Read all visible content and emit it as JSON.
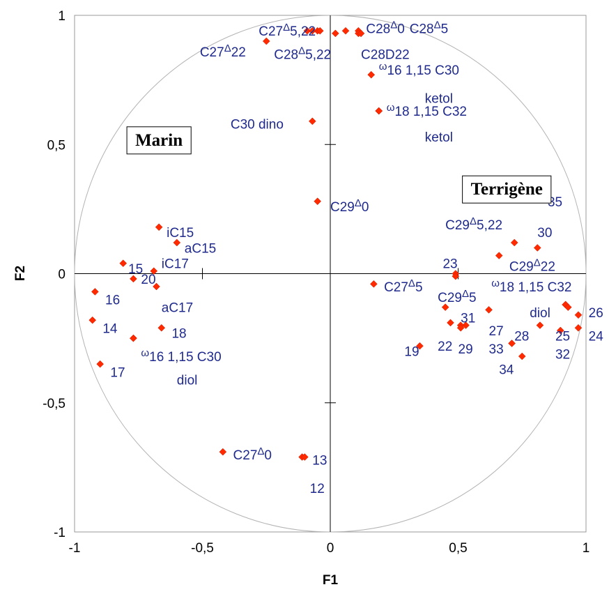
{
  "chart_data": {
    "type": "scatter",
    "title": "",
    "xlabel": "F1",
    "ylabel": "F2",
    "xlim": [
      -1,
      1
    ],
    "ylim": [
      -1,
      1
    ],
    "grid": false,
    "correlation_circle": true,
    "x_ticks": [
      {
        "v": -1,
        "label": "-1"
      },
      {
        "v": -0.5,
        "label": "-0,5"
      },
      {
        "v": 0,
        "label": "0"
      },
      {
        "v": 0.5,
        "label": "0,5"
      },
      {
        "v": 1,
        "label": "1"
      }
    ],
    "y_ticks": [
      {
        "v": 1,
        "label": "1"
      },
      {
        "v": 0.5,
        "label": "0,5"
      },
      {
        "v": 0,
        "label": "0"
      },
      {
        "v": -0.5,
        "label": "-0,5"
      },
      {
        "v": -1,
        "label": "-1"
      }
    ],
    "colors": {
      "marker": "#ff2a00",
      "label": "#1f2a8c",
      "circle": "#b3b3b3",
      "frame": "#999999"
    },
    "box_labels": [
      {
        "text": "Marin",
        "x": -0.67,
        "y": 0.52
      },
      {
        "text": "Terrigène",
        "x": 0.69,
        "y": 0.33
      }
    ],
    "points": [
      {
        "x": -0.05,
        "y": 0.94,
        "label": "C27Δ5,22",
        "lx": -0.28,
        "ly": 0.94,
        "t": [
          [
            "C27",
            ""
          ],
          [
            "Δ",
            "s"
          ],
          [
            "5,22",
            ""
          ]
        ]
      },
      {
        "x": -0.09,
        "y": 0.94,
        "label": "",
        "lx": 0,
        "ly": 0,
        "t": []
      },
      {
        "x": -0.07,
        "y": 0.94,
        "label": "",
        "lx": 0,
        "ly": 0,
        "t": []
      },
      {
        "x": 0.02,
        "y": 0.93,
        "label": "",
        "lx": 0,
        "ly": 0,
        "t": []
      },
      {
        "x": 0.06,
        "y": 0.94,
        "label": "",
        "lx": 0,
        "ly": 0,
        "t": []
      },
      {
        "x": 0.11,
        "y": 0.94,
        "label": "C28Δ0",
        "lx": 0.14,
        "ly": 0.95,
        "t": [
          [
            "C28",
            ""
          ],
          [
            "Δ",
            "s"
          ],
          [
            "0",
            ""
          ]
        ]
      },
      {
        "x": 0.11,
        "y": 0.93,
        "label": "C28Δ5",
        "lx": 0.31,
        "ly": 0.95,
        "t": [
          [
            "C28",
            ""
          ],
          [
            "Δ",
            "s"
          ],
          [
            "5",
            ""
          ]
        ]
      },
      {
        "x": -0.25,
        "y": 0.9,
        "label": "C27Δ22",
        "lx": -0.51,
        "ly": 0.86,
        "t": [
          [
            "C27",
            ""
          ],
          [
            "Δ",
            "s"
          ],
          [
            "22",
            ""
          ]
        ]
      },
      {
        "x": -0.04,
        "y": 0.94,
        "label": "C28Δ5,22",
        "lx": -0.22,
        "ly": 0.85,
        "t": [
          [
            "C28",
            ""
          ],
          [
            "Δ",
            "s"
          ],
          [
            "5,22",
            ""
          ]
        ]
      },
      {
        "x": 0.12,
        "y": 0.93,
        "label": "C28D22",
        "lx": 0.12,
        "ly": 0.85,
        "t": [
          [
            "C28D22",
            ""
          ]
        ]
      },
      {
        "x": 0.16,
        "y": 0.77,
        "label": "ω16 1,15 C30",
        "lx": 0.19,
        "ly": 0.79,
        "t": [
          [
            "ω",
            "s"
          ],
          [
            "16 1,15 C30",
            ""
          ]
        ]
      },
      {
        "x": 0.16,
        "y": 0.77,
        "label": "ketol",
        "lx": 0.37,
        "ly": 0.68,
        "t": [
          [
            "ketol",
            ""
          ]
        ]
      },
      {
        "x": 0.19,
        "y": 0.63,
        "label": "ω18 1,15 C32",
        "lx": 0.22,
        "ly": 0.63,
        "t": [
          [
            "ω",
            "s"
          ],
          [
            "18 1,15 C32",
            ""
          ]
        ]
      },
      {
        "x": 0.19,
        "y": 0.63,
        "label": "ketol",
        "lx": 0.37,
        "ly": 0.53,
        "t": [
          [
            "ketol",
            ""
          ]
        ]
      },
      {
        "x": -0.07,
        "y": 0.59,
        "label": "C30 dino",
        "lx": -0.39,
        "ly": 0.58,
        "t": [
          [
            "C30 dino",
            ""
          ]
        ]
      },
      {
        "x": -0.05,
        "y": 0.28,
        "label": "C29Δ0",
        "lx": 0.0,
        "ly": 0.26,
        "t": [
          [
            "C29",
            ""
          ],
          [
            "Δ",
            "s"
          ],
          [
            "0",
            ""
          ]
        ]
      },
      {
        "x": 0.81,
        "y": 0.3,
        "label": "35",
        "lx": 0.85,
        "ly": 0.28,
        "t": [
          [
            "35",
            ""
          ]
        ]
      },
      {
        "x": 0.72,
        "y": 0.12,
        "label": "C29Δ5,22",
        "lx": 0.45,
        "ly": 0.19,
        "t": [
          [
            "C29",
            ""
          ],
          [
            "Δ",
            "s"
          ],
          [
            "5,22",
            ""
          ]
        ]
      },
      {
        "x": 0.81,
        "y": 0.1,
        "label": "30",
        "lx": 0.81,
        "ly": 0.16,
        "t": [
          [
            "30",
            ""
          ]
        ]
      },
      {
        "x": 0.66,
        "y": 0.07,
        "label": "C29Δ22",
        "lx": 0.7,
        "ly": 0.03,
        "t": [
          [
            "C29",
            ""
          ],
          [
            "Δ",
            "s"
          ],
          [
            "22",
            ""
          ]
        ]
      },
      {
        "x": 0.49,
        "y": 0.0,
        "label": "23",
        "lx": 0.44,
        "ly": 0.04,
        "t": [
          [
            "23",
            ""
          ]
        ]
      },
      {
        "x": 0.17,
        "y": -0.04,
        "label": "C27Δ5",
        "lx": 0.21,
        "ly": -0.05,
        "t": [
          [
            "C27",
            ""
          ],
          [
            "Δ",
            "s"
          ],
          [
            "5",
            ""
          ]
        ]
      },
      {
        "x": 0.49,
        "y": -0.01,
        "label": "C29Δ5",
        "lx": 0.42,
        "ly": -0.09,
        "t": [
          [
            "C29",
            ""
          ],
          [
            "Δ",
            "s"
          ],
          [
            "5",
            ""
          ]
        ]
      },
      {
        "x": 0.92,
        "y": -0.12,
        "label": "ω18 1,15 C32",
        "lx": 0.63,
        "ly": -0.05,
        "t": [
          [
            "ω",
            "s"
          ],
          [
            "18 1,15 C32",
            ""
          ]
        ]
      },
      {
        "x": 0.92,
        "y": -0.12,
        "label": "diol",
        "lx": 0.78,
        "ly": -0.15,
        "t": [
          [
            "diol",
            ""
          ]
        ]
      },
      {
        "x": 0.93,
        "y": -0.13,
        "label": "",
        "lx": 0,
        "ly": 0,
        "t": []
      },
      {
        "x": 0.45,
        "y": -0.13,
        "label": "31",
        "lx": 0.51,
        "ly": -0.17,
        "t": [
          [
            "31",
            ""
          ]
        ]
      },
      {
        "x": 0.62,
        "y": -0.14,
        "label": "27",
        "lx": 0.62,
        "ly": -0.22,
        "t": [
          [
            "27",
            ""
          ]
        ]
      },
      {
        "x": 0.97,
        "y": -0.16,
        "label": "26",
        "lx": 1.01,
        "ly": -0.15,
        "t": [
          [
            "26",
            ""
          ]
        ]
      },
      {
        "x": 0.47,
        "y": -0.19,
        "label": "22",
        "lx": 0.42,
        "ly": -0.28,
        "t": [
          [
            "22",
            ""
          ]
        ]
      },
      {
        "x": 0.53,
        "y": -0.2,
        "label": "29",
        "lx": 0.5,
        "ly": -0.29,
        "t": [
          [
            "29",
            ""
          ]
        ]
      },
      {
        "x": 0.51,
        "y": -0.2,
        "label": "",
        "lx": 0,
        "ly": 0,
        "t": []
      },
      {
        "x": 0.51,
        "y": -0.21,
        "label": "",
        "lx": 0,
        "ly": 0,
        "t": []
      },
      {
        "x": 0.82,
        "y": -0.2,
        "label": "25",
        "lx": 0.88,
        "ly": -0.24,
        "t": [
          [
            "25",
            ""
          ]
        ]
      },
      {
        "x": 0.97,
        "y": -0.21,
        "label": "24",
        "lx": 1.01,
        "ly": -0.24,
        "t": [
          [
            "24",
            ""
          ]
        ]
      },
      {
        "x": 0.71,
        "y": -0.27,
        "label": "28",
        "lx": 0.72,
        "ly": -0.24,
        "t": [
          [
            "28",
            ""
          ]
        ]
      },
      {
        "x": 0.71,
        "y": -0.27,
        "label": "33",
        "lx": 0.62,
        "ly": -0.29,
        "t": [
          [
            "33",
            ""
          ]
        ]
      },
      {
        "x": 0.35,
        "y": -0.28,
        "label": "19",
        "lx": 0.29,
        "ly": -0.3,
        "t": [
          [
            "19",
            ""
          ]
        ]
      },
      {
        "x": 0.75,
        "y": -0.32,
        "label": "34",
        "lx": 0.66,
        "ly": -0.37,
        "t": [
          [
            "34",
            ""
          ]
        ]
      },
      {
        "x": 0.9,
        "y": -0.22,
        "label": "32",
        "lx": 0.88,
        "ly": -0.31,
        "t": [
          [
            "32",
            ""
          ]
        ]
      },
      {
        "x": -0.67,
        "y": 0.18,
        "label": "iC15",
        "lx": -0.64,
        "ly": 0.16,
        "t": [
          [
            "iC15",
            ""
          ]
        ]
      },
      {
        "x": -0.6,
        "y": 0.12,
        "label": "aC15",
        "lx": -0.57,
        "ly": 0.1,
        "t": [
          [
            "aC15",
            ""
          ]
        ]
      },
      {
        "x": -0.81,
        "y": 0.04,
        "label": "15",
        "lx": -0.79,
        "ly": 0.02,
        "t": [
          [
            "15",
            ""
          ]
        ]
      },
      {
        "x": -0.69,
        "y": 0.01,
        "label": "iC17",
        "lx": -0.66,
        "ly": 0.04,
        "t": [
          [
            "iC17",
            ""
          ]
        ]
      },
      {
        "x": -0.77,
        "y": -0.02,
        "label": "20",
        "lx": -0.74,
        "ly": -0.02,
        "t": [
          [
            "20",
            ""
          ]
        ]
      },
      {
        "x": -0.68,
        "y": -0.05,
        "label": "aC17",
        "lx": -0.66,
        "ly": -0.13,
        "t": [
          [
            "aC17",
            ""
          ]
        ]
      },
      {
        "x": -0.92,
        "y": -0.07,
        "label": "16",
        "lx": -0.88,
        "ly": -0.1,
        "t": [
          [
            "16",
            ""
          ]
        ]
      },
      {
        "x": -0.93,
        "y": -0.18,
        "label": "14",
        "lx": -0.89,
        "ly": -0.21,
        "t": [
          [
            "14",
            ""
          ]
        ]
      },
      {
        "x": -0.66,
        "y": -0.21,
        "label": "18",
        "lx": -0.62,
        "ly": -0.23,
        "t": [
          [
            "18",
            ""
          ]
        ]
      },
      {
        "x": -0.77,
        "y": -0.25,
        "label": "ω16 1,15 C30",
        "lx": -0.74,
        "ly": -0.32,
        "t": [
          [
            "ω",
            "s"
          ],
          [
            "16 1,15 C30",
            ""
          ]
        ]
      },
      {
        "x": -0.77,
        "y": -0.25,
        "label": "diol",
        "lx": -0.6,
        "ly": -0.41,
        "t": [
          [
            "diol",
            ""
          ]
        ]
      },
      {
        "x": -0.9,
        "y": -0.35,
        "label": "17",
        "lx": -0.86,
        "ly": -0.38,
        "t": [
          [
            "17",
            ""
          ]
        ]
      },
      {
        "x": -0.42,
        "y": -0.69,
        "label": "C27Δ0",
        "lx": -0.38,
        "ly": -0.7,
        "t": [
          [
            "C27",
            ""
          ],
          [
            "Δ",
            "s"
          ],
          [
            "0",
            ""
          ]
        ]
      },
      {
        "x": -0.11,
        "y": -0.71,
        "label": "13",
        "lx": -0.07,
        "ly": -0.72,
        "t": [
          [
            "13",
            ""
          ]
        ]
      },
      {
        "x": -0.1,
        "y": -0.71,
        "label": "12",
        "lx": -0.08,
        "ly": -0.83,
        "t": [
          [
            "12",
            ""
          ]
        ]
      }
    ]
  }
}
